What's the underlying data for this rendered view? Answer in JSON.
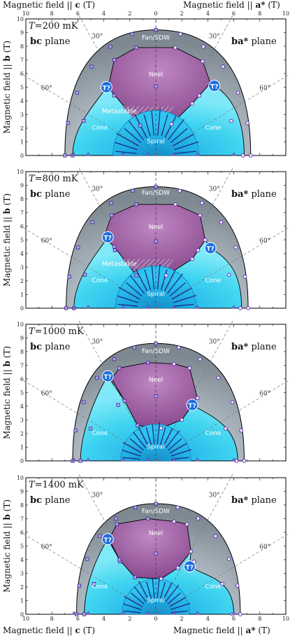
{
  "chart_data": {
    "type": "scatter",
    "axes": {
      "top_left_label": "Magnetic field || c (T)",
      "top_right_label": "Magnetic field || a* (T)",
      "bottom_left_label": "Magnetic field || c (T)",
      "bottom_right_label": "Magnetic field || a* (T)",
      "ylabel": "Magnetic field || b (T)",
      "x_ticks_top": [
        "10",
        "8",
        "6",
        "4",
        "2",
        "0",
        "2",
        "4",
        "6",
        "8",
        "10"
      ],
      "x_ticks_bottom": [
        "10",
        "8",
        "6",
        "4",
        "2",
        "0",
        "2",
        "4",
        "6",
        "8",
        "10"
      ],
      "y_ticks": [
        "0",
        "1",
        "2",
        "3",
        "4",
        "5",
        "6",
        "7",
        "8",
        "9",
        "10"
      ],
      "xlim": [
        -10,
        10
      ],
      "ylim": [
        0,
        10
      ]
    },
    "labels": {
      "left_plane": "bc plane",
      "right_plane": "ba* plane",
      "fan": "Fan/SDW",
      "neel": "Neel",
      "metastable": "Metastable",
      "cone": "Cone",
      "spiral": "Spiral",
      "tricritical": "T?",
      "angle30": "30°",
      "angle60": "60°"
    },
    "panels": [
      {
        "temperature": "T=200 mK",
        "outer": {
          "left": 7.0,
          "right": 7.3,
          "top": 9.2
        },
        "fan_top": 8.0,
        "neel": [
          [
            -3.6,
            5.3
          ],
          [
            -3.2,
            7.0
          ],
          [
            -1.5,
            7.9
          ],
          [
            1.5,
            7.9
          ],
          [
            3.6,
            6.9
          ],
          [
            4.2,
            5.3
          ],
          [
            2.8,
            3.8
          ],
          [
            1.2,
            2.3
          ],
          [
            -1.2,
            2.2
          ],
          [
            -3.5,
            4.8
          ]
        ],
        "spiral_radius": 3.3,
        "triple_left": [
          -3.8,
          5.0
        ],
        "triple_right": [
          4.5,
          5.1
        ],
        "show_metastable": true,
        "show_left_cone": true
      },
      {
        "temperature": "T=800 mK",
        "outer": {
          "left": 6.9,
          "right": 7.1,
          "top": 8.9
        },
        "fan_top": 7.8,
        "neel": [
          [
            -4.0,
            5.2
          ],
          [
            -3.4,
            6.8
          ],
          [
            -1.5,
            7.6
          ],
          [
            1.5,
            7.6
          ],
          [
            3.4,
            6.8
          ],
          [
            3.8,
            5.0
          ],
          [
            2.8,
            3.6
          ],
          [
            0.8,
            2.4
          ],
          [
            -1.5,
            2.4
          ],
          [
            -3.2,
            4.5
          ]
        ],
        "spiral_radius": 3.1,
        "triple_left": [
          -3.7,
          5.2
        ],
        "triple_right": [
          4.2,
          4.4
        ],
        "show_metastable": true,
        "show_left_cone": true
      },
      {
        "temperature": "T=1000 mK",
        "outer": {
          "left": 6.4,
          "right": 6.8,
          "top": 8.6
        },
        "fan_top": 7.4,
        "neel": [
          [
            -3.4,
            6.0
          ],
          [
            -2.8,
            6.8
          ],
          [
            -0.6,
            7.2
          ],
          [
            1.4,
            7.1
          ],
          [
            2.6,
            6.8
          ],
          [
            3.2,
            4.6
          ],
          [
            2.0,
            3.0
          ],
          [
            0.4,
            2.4
          ],
          [
            -1.4,
            2.6
          ],
          [
            -2.4,
            4.4
          ]
        ],
        "spiral_radius": 2.7,
        "triple_left": [
          -3.7,
          6.2
        ],
        "triple_right": [
          2.8,
          4.1
        ],
        "show_metastable": false,
        "show_left_cone": true
      },
      {
        "temperature": "T=1400 mK",
        "outer": {
          "left": 6.1,
          "right": 6.5,
          "top": 8.1
        },
        "fan_top": 6.9,
        "neel": [
          [
            -3.6,
            5.5
          ],
          [
            -3.0,
            6.6
          ],
          [
            -0.6,
            7.0
          ],
          [
            1.4,
            6.8
          ],
          [
            2.4,
            6.6
          ],
          [
            2.7,
            4.6
          ],
          [
            1.7,
            3.4
          ],
          [
            0.4,
            2.6
          ],
          [
            -1.6,
            2.7
          ],
          [
            -2.8,
            4.0
          ]
        ],
        "spiral_radius": 2.6,
        "triple_left": [
          -3.7,
          5.5
        ],
        "triple_right": [
          2.6,
          3.5
        ],
        "show_metastable": false,
        "show_left_cone": true
      }
    ]
  }
}
